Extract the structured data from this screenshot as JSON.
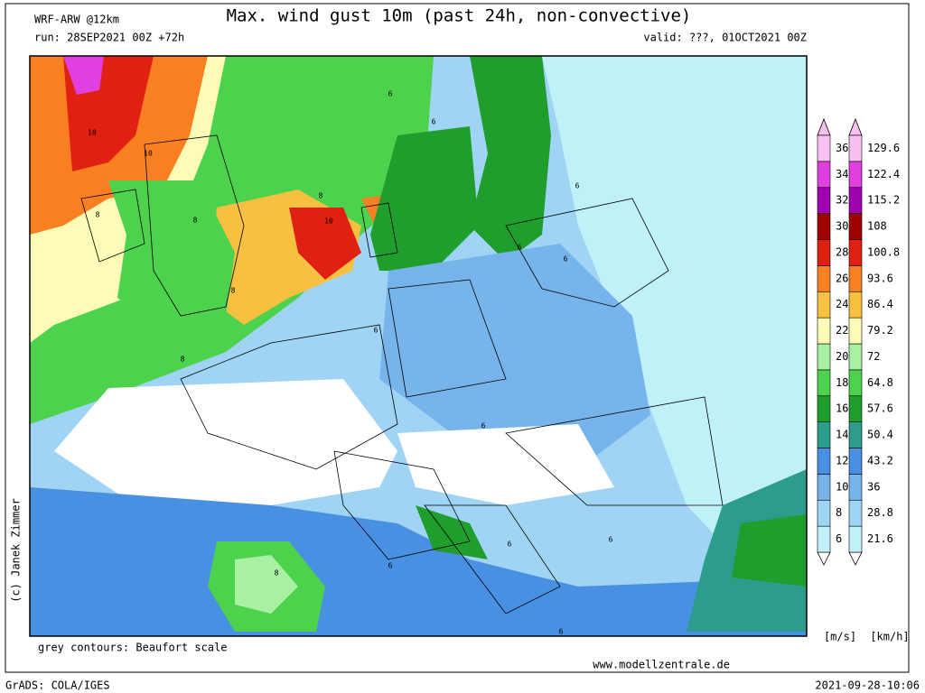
{
  "header": {
    "model": "WRF-ARW @12km",
    "title": "Max. wind gust 10m (past 24h, non-convective)",
    "run": "run: 28SEP2021 00Z +72h",
    "valid": "valid: ???, 01OCT2021 00Z"
  },
  "footer": {
    "copyright": "(c) Janek Zimmer",
    "note": "grey contours: Beaufort scale",
    "website": "www.modellzentrale.de",
    "software": "GrADS: COLA/IGES",
    "timestamp": "2021-09-28-10:06"
  },
  "legend": {
    "unit_ms": "[m/s]",
    "unit_kmh": "[km/h]",
    "ms": [
      "6",
      "8",
      "10",
      "12",
      "14",
      "16",
      "18",
      "20",
      "22",
      "24",
      "26",
      "28",
      "30",
      "32",
      "34",
      "36"
    ],
    "kmh": [
      "21.6",
      "28.8",
      "36",
      "43.2",
      "50.4",
      "57.6",
      "64.8",
      "72",
      "79.2",
      "86.4",
      "93.6",
      "100.8",
      "108",
      "115.2",
      "122.4",
      "129.6"
    ],
    "colors": [
      "#c0f0f8",
      "#a0d4f4",
      "#78b4ec",
      "#4a90e2",
      "#2c9c8c",
      "#1f9e2e",
      "#4cd24c",
      "#a8f0a4",
      "#fcfcb8",
      "#f8c040",
      "#f88020",
      "#e02010",
      "#a00000",
      "#a000b0",
      "#e040e0",
      "#f8c0f0"
    ]
  },
  "contour_labels": [
    "10",
    "10",
    "8",
    "8",
    "8",
    "6",
    "6",
    "10",
    "8",
    "6",
    "6",
    "6",
    "6",
    "8",
    "6",
    "6",
    "6",
    "8",
    "6",
    "6"
  ]
}
